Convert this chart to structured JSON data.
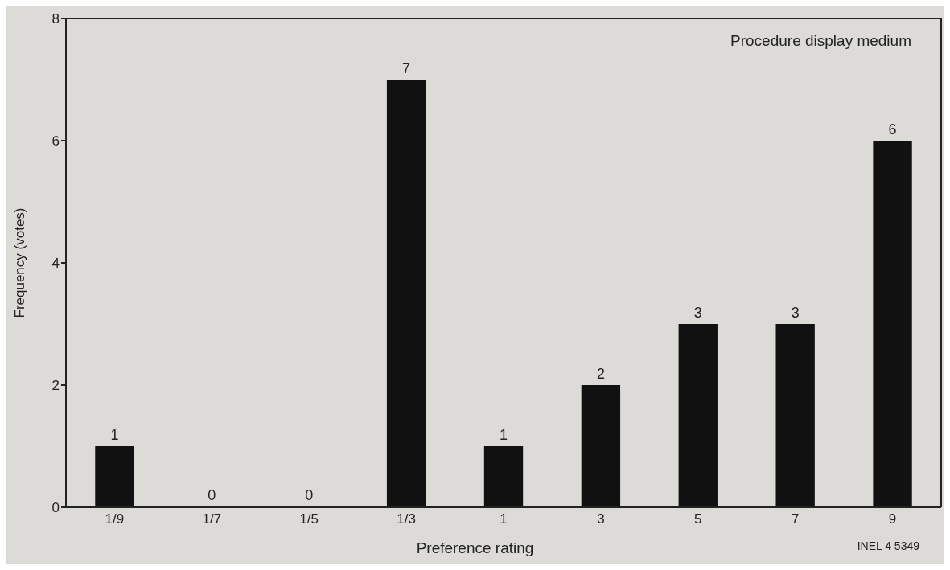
{
  "chart_data": {
    "type": "bar",
    "title": "Procedure display medium",
    "xlabel": "Preference rating",
    "ylabel": "Frequency (votes)",
    "categories": [
      "1/9",
      "1/7",
      "1/5",
      "1/3",
      "1",
      "3",
      "5",
      "7",
      "9"
    ],
    "values": [
      1,
      0,
      0,
      7,
      1,
      2,
      3,
      3,
      6
    ],
    "color": "#111111",
    "ylim": [
      0,
      8
    ],
    "yticks": [
      0,
      2,
      4,
      6,
      8
    ],
    "data_labels": true,
    "grid": false,
    "annotations": [
      "INEL 4 5349"
    ]
  }
}
